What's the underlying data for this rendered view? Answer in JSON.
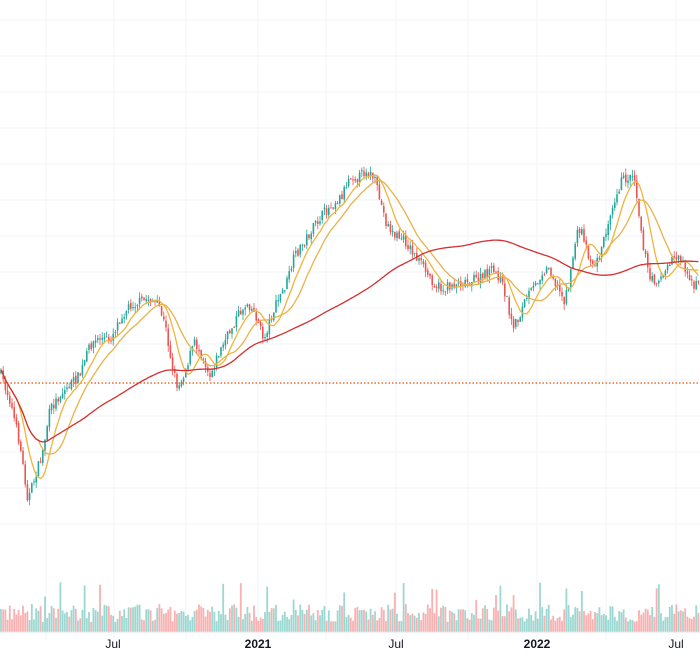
{
  "chart_data": {
    "type": "candlestick",
    "x_axis_labels": [
      "Jul",
      "2021",
      "Jul",
      "2022",
      "Jul"
    ],
    "reference_line": {
      "style": "dotted",
      "color": "#e65100"
    },
    "colors": {
      "up": "#26a69a",
      "down": "#ef5350",
      "ma_fast": "#f0b43c",
      "ma_mid": "#e8b24a",
      "ma_slow": "#d32f2f",
      "grid": "#f0f3fa",
      "axis_text": "#131722"
    },
    "moving_averages": [
      {
        "color": "#f0b43c"
      },
      {
        "color": "#e8b24a"
      },
      {
        "color": "#d32f2f"
      }
    ],
    "grid": true,
    "volume_panel": true,
    "legend": "none"
  }
}
